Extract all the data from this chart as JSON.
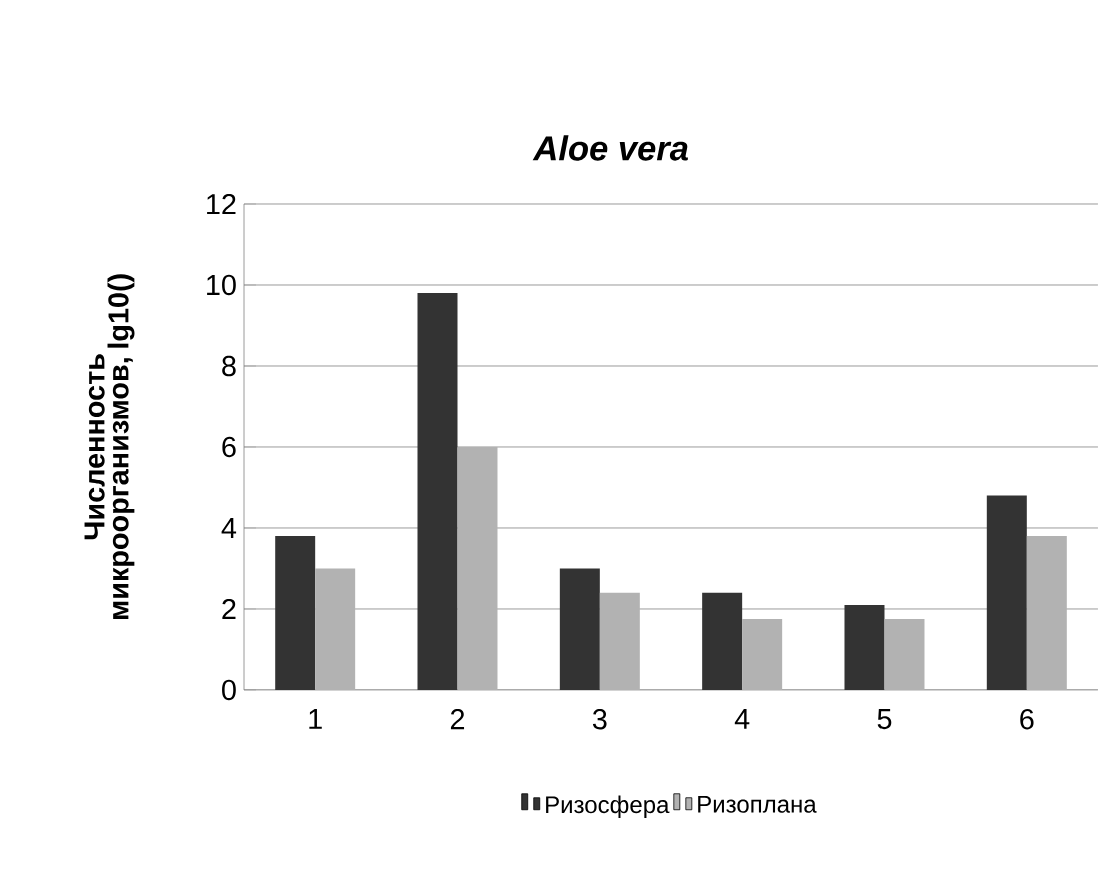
{
  "chart_data": {
    "type": "bar",
    "title": "Aloe vera",
    "ylabel": "Численность микроорганизмов,  lg10()",
    "categories": [
      "1",
      "2",
      "3",
      "4",
      "5",
      "6"
    ],
    "series": [
      {
        "name": "Ризосфера",
        "color": "#333333",
        "values": [
          3.8,
          9.8,
          3.0,
          2.4,
          2.1,
          4.8
        ]
      },
      {
        "name": "Ризоплана",
        "color": "#b2b2b2",
        "values": [
          3.0,
          6.0,
          2.4,
          1.75,
          1.75,
          3.8
        ]
      }
    ],
    "ylim": [
      0,
      12
    ],
    "yticks": [
      0,
      2,
      4,
      6,
      8,
      10,
      12
    ],
    "grid": "y",
    "legend": "bottom"
  }
}
